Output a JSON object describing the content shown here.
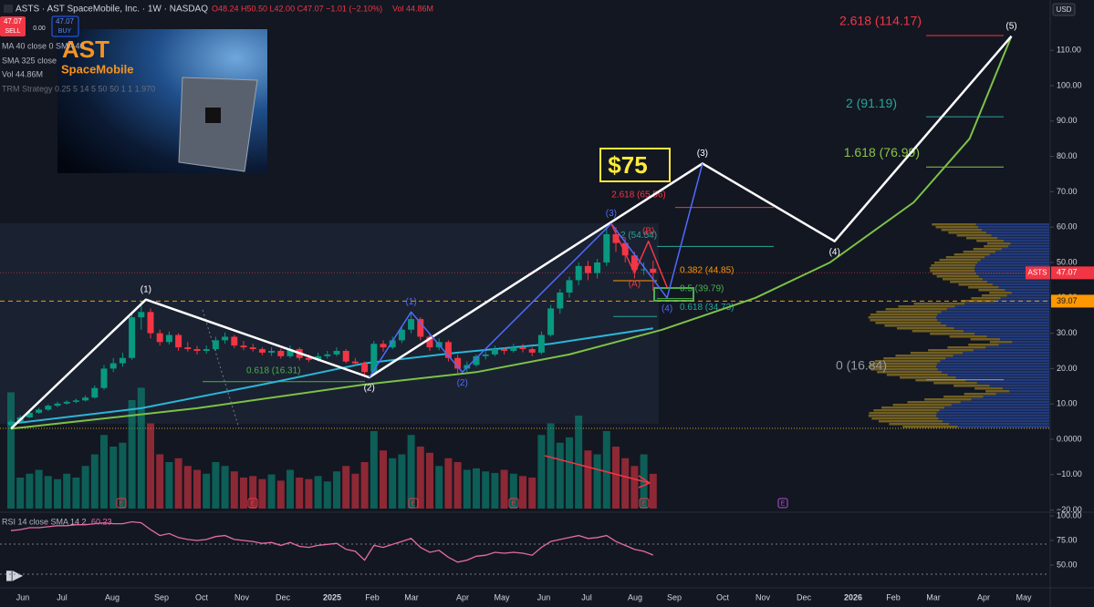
{
  "header": {
    "symbol": "ASTS · AST SpaceMobile, Inc. · 1W · NASDAQ",
    "ohlc": "O48.24 H50.50 L42.00 C47.07 −1.01 (−2.10%)",
    "volume": "Vol 44.86M"
  },
  "trade": {
    "sell_price": "47.07",
    "sell": "SELL",
    "spread": "0.00",
    "buy_price": "47.07",
    "buy": "BUY"
  },
  "indicators": [
    "MA 40 close 0 SMA 40",
    "SMA 325 close",
    "Vol 44.86M",
    "TRM Strategy 0.25 5 14 5 50 50 1 1 1.970"
  ],
  "logo": {
    "top": "AST",
    "bottom": "SpaceMobile"
  },
  "currency": "USD",
  "price_axis": {
    "ticks": [
      {
        "value": 110,
        "label": "110.00"
      },
      {
        "value": 100,
        "label": "100.00"
      },
      {
        "value": 90,
        "label": "90.00"
      },
      {
        "value": 80,
        "label": "80.00"
      },
      {
        "value": 70,
        "label": "70.00"
      },
      {
        "value": 60,
        "label": "60.00"
      },
      {
        "value": 50,
        "label": "50.00"
      },
      {
        "value": 40,
        "label": "40.00"
      },
      {
        "value": 30,
        "label": "30.00"
      },
      {
        "value": 20,
        "label": "20.00"
      },
      {
        "value": 10,
        "label": "10.00"
      },
      {
        "value": 0,
        "label": "0.0000"
      },
      {
        "value": -10,
        "label": "−10.00"
      },
      {
        "value": -20,
        "label": "−20.00"
      }
    ]
  },
  "time_axis": [
    "Jun",
    "Jul",
    "Aug",
    "Sep",
    "Oct",
    "Nov",
    "Dec",
    "2025",
    "Feb",
    "Mar",
    "Apr",
    "May",
    "Jun",
    "Jul",
    "Aug",
    "Sep",
    "Oct",
    "Nov",
    "Dec",
    "2026",
    "Feb",
    "Mar",
    "Apr",
    "May"
  ],
  "up_color": "#089981",
  "down_color": "#f23645",
  "candles": [
    [
      4.0,
      5.6,
      3.6,
      5.0
    ],
    [
      5.0,
      6.8,
      4.8,
      6.2
    ],
    [
      6.2,
      8.0,
      6.0,
      7.5
    ],
    [
      7.5,
      8.9,
      7.2,
      8.4
    ],
    [
      8.4,
      9.9,
      8.0,
      9.5
    ],
    [
      9.5,
      10.6,
      9.1,
      10.1
    ],
    [
      10.1,
      11.0,
      9.8,
      10.6
    ],
    [
      10.6,
      11.5,
      10.2,
      11.0
    ],
    [
      11.0,
      12.4,
      10.7,
      11.8
    ],
    [
      11.8,
      15.2,
      11.5,
      14.5
    ],
    [
      14.5,
      21.0,
      14.0,
      20.0
    ],
    [
      20.0,
      23.0,
      19.0,
      21.5
    ],
    [
      21.5,
      24.5,
      20.5,
      23.0
    ],
    [
      23.0,
      35.5,
      22.5,
      34.5
    ],
    [
      34.5,
      39.1,
      31.0,
      36.0
    ],
    [
      36.0,
      37.0,
      28.5,
      30.0
    ],
    [
      30.0,
      31.0,
      26.5,
      27.5
    ],
    [
      27.5,
      30.5,
      26.8,
      29.5
    ],
    [
      29.5,
      30.0,
      25.0,
      26.0
    ],
    [
      26.0,
      27.5,
      24.8,
      25.5
    ],
    [
      25.5,
      26.4,
      24.0,
      25.0
    ],
    [
      25.0,
      26.5,
      24.2,
      25.5
    ],
    [
      25.5,
      29.0,
      25.0,
      28.0
    ],
    [
      28.0,
      30.2,
      27.0,
      29.0
    ],
    [
      29.0,
      29.5,
      25.8,
      26.5
    ],
    [
      26.5,
      27.8,
      25.2,
      26.0
    ],
    [
      26.0,
      27.0,
      24.8,
      25.5
    ],
    [
      25.5,
      26.0,
      23.8,
      24.5
    ],
    [
      24.5,
      26.0,
      23.6,
      25.0
    ],
    [
      25.0,
      25.6,
      22.8,
      23.5
    ],
    [
      23.5,
      26.5,
      23.0,
      25.5
    ],
    [
      25.5,
      26.0,
      22.3,
      23.0
    ],
    [
      23.0,
      24.0,
      21.8,
      22.5
    ],
    [
      22.5,
      24.5,
      22.0,
      23.5
    ],
    [
      23.5,
      25.0,
      22.8,
      24.0
    ],
    [
      24.0,
      26.0,
      23.5,
      25.0
    ],
    [
      25.0,
      25.5,
      21.5,
      22.0
    ],
    [
      22.0,
      23.0,
      20.8,
      21.5
    ],
    [
      21.5,
      22.0,
      17.5,
      19.0
    ],
    [
      19.0,
      27.8,
      18.6,
      27.0
    ],
    [
      27.0,
      28.0,
      24.8,
      26.0
    ],
    [
      26.0,
      29.0,
      25.5,
      28.0
    ],
    [
      28.0,
      32.0,
      27.2,
      31.0
    ],
    [
      31.0,
      36.0,
      30.0,
      34.0
    ],
    [
      34.0,
      34.5,
      28.0,
      29.0
    ],
    [
      29.0,
      30.0,
      25.0,
      26.0
    ],
    [
      26.0,
      28.5,
      25.2,
      27.5
    ],
    [
      27.5,
      28.0,
      22.0,
      23.0
    ],
    [
      23.0,
      24.0,
      18.5,
      20.0
    ],
    [
      20.0,
      22.0,
      19.0,
      21.0
    ],
    [
      21.0,
      24.0,
      20.5,
      23.5
    ],
    [
      23.5,
      25.0,
      22.6,
      24.0
    ],
    [
      24.0,
      26.5,
      23.5,
      25.5
    ],
    [
      25.5,
      26.0,
      24.0,
      25.0
    ],
    [
      25.0,
      27.0,
      24.5,
      26.0
    ],
    [
      26.0,
      27.0,
      24.6,
      25.5
    ],
    [
      25.5,
      26.0,
      23.5,
      24.5
    ],
    [
      24.5,
      30.5,
      24.0,
      29.5
    ],
    [
      29.5,
      38.0,
      29.0,
      37.0
    ],
    [
      37.0,
      42.5,
      35.5,
      41.5
    ],
    [
      41.5,
      46.0,
      40.0,
      45.0
    ],
    [
      45.0,
      50.0,
      43.5,
      49.0
    ],
    [
      49.0,
      50.5,
      45.0,
      47.0
    ],
    [
      47.0,
      51.0,
      45.5,
      50.0
    ],
    [
      50.0,
      60.1,
      49.0,
      58.0
    ],
    [
      58.0,
      60.0,
      53.0,
      55.5
    ],
    [
      55.5,
      57.0,
      50.0,
      52.0
    ],
    [
      52.0,
      53.0,
      45.5,
      48.0
    ],
    [
      48.0,
      50.0,
      46.5,
      48.08
    ],
    [
      48.24,
      50.5,
      42.0,
      47.07
    ]
  ],
  "volume": [
    150,
    40,
    45,
    50,
    42,
    38,
    45,
    40,
    55,
    70,
    95,
    80,
    85,
    140,
    156,
    110,
    70,
    60,
    65,
    55,
    50,
    45,
    60,
    55,
    48,
    40,
    42,
    38,
    44,
    36,
    50,
    40,
    38,
    42,
    35,
    48,
    55,
    45,
    60,
    100,
    75,
    65,
    70,
    95,
    80,
    72,
    55,
    65,
    60,
    50,
    52,
    48,
    46,
    50,
    45,
    42,
    40,
    95,
    110,
    85,
    92,
    120,
    75,
    70,
    100,
    80,
    65,
    55,
    70,
    44.86
  ],
  "rsi": {
    "label": "RSI 14 close SMA 14 2",
    "value": "60.23",
    "color": "#e36ba6",
    "values": [
      85,
      86,
      88,
      88,
      89,
      90,
      90,
      91,
      91,
      92,
      93,
      92,
      92,
      94,
      93,
      86,
      80,
      82,
      78,
      76,
      75,
      76,
      79,
      80,
      76,
      75,
      74,
      72,
      73,
      70,
      73,
      69,
      68,
      70,
      71,
      72,
      66,
      64,
      55,
      70,
      68,
      71,
      74,
      77,
      68,
      63,
      65,
      58,
      53,
      55,
      59,
      60,
      63,
      62,
      63,
      62,
      60,
      68,
      74,
      76,
      78,
      80,
      77,
      78,
      80,
      74,
      70,
      66,
      64,
      60.23
    ],
    "ticks": [
      {
        "value": 100,
        "label": "100.00"
      },
      {
        "value": 75,
        "label": "75.00"
      },
      {
        "value": 50,
        "label": "50.00"
      }
    ]
  },
  "last_price": {
    "symbol": "ASTS",
    "price": 47.07,
    "label": "47.07"
  },
  "level": {
    "price": 39.07,
    "label": "39.07"
  },
  "target_box": "$75",
  "sma_40": {
    "color": "#2cb5d6",
    "points": [
      [
        0,
        4.4
      ],
      [
        14,
        8.8
      ],
      [
        28,
        16
      ],
      [
        38,
        21.5
      ],
      [
        48,
        24.5
      ],
      [
        58,
        27
      ],
      [
        69,
        31.4
      ]
    ]
  },
  "sma_325": {
    "color": "#7cc247",
    "points": [
      [
        0,
        3
      ],
      [
        20,
        8.8
      ],
      [
        38,
        15.5
      ],
      [
        50,
        19
      ],
      [
        60,
        24
      ],
      [
        70,
        31
      ],
      [
        80,
        40
      ],
      [
        88,
        50
      ],
      [
        97,
        67
      ],
      [
        103,
        85
      ],
      [
        107.5,
        114
      ]
    ]
  },
  "primary_wave": {
    "color": "#ffffff",
    "points": [
      [
        0,
        3
      ],
      [
        14.5,
        39.5
      ],
      [
        38.5,
        17.5
      ],
      [
        74.3,
        78
      ],
      [
        88.5,
        56
      ],
      [
        107.5,
        114
      ]
    ],
    "labels": [
      null,
      "(1)",
      "(2)",
      "(3)",
      "(4)",
      "(5)"
    ]
  },
  "sub_wave": {
    "color": "#4f6bff",
    "points": [
      [
        38.5,
        17.5
      ],
      [
        43,
        36
      ],
      [
        48.5,
        19
      ],
      [
        64.5,
        61
      ],
      [
        70.5,
        40
      ],
      [
        74.3,
        78
      ]
    ],
    "labels": [
      null,
      "(1)",
      "(2)",
      "(3)",
      "(4)",
      null
    ]
  },
  "correction": {
    "color": "#f23645",
    "points": [
      [
        64.5,
        61
      ],
      [
        67,
        47
      ],
      [
        68.5,
        56
      ],
      [
        70.5,
        43
      ]
    ],
    "labels": [
      null,
      "(A)",
      "(B)",
      null
    ]
  },
  "fibs": [
    {
      "price": 114.17,
      "label": "2.618 (114.17)",
      "color": "#f23645"
    },
    {
      "price": 91.19,
      "label": "2 (91.19)",
      "color": "#26a69a"
    },
    {
      "price": 76.99,
      "label": "1.618 (76.99)",
      "color": "#8bc34a"
    },
    {
      "price": 16.84,
      "label": "0 (16.84)",
      "color": "#9598a1"
    },
    {
      "price": 65.56,
      "label": "2.618 (65.56)",
      "color": "#f23645"
    },
    {
      "price": 54.54,
      "label": "2 (54.54)",
      "color": "#26a69a"
    },
    {
      "price": 44.85,
      "label": "0.382 (44.85)",
      "color": "#ff9800"
    },
    {
      "price": 39.79,
      "label": "0.5 (39.79)",
      "color": "#4caf50"
    },
    {
      "price": 34.73,
      "label": "0.618 (34.73)",
      "color": "#26a69a"
    },
    {
      "price": 16.31,
      "label": "0.618 (16.31)",
      "color": "#4caf50"
    }
  ],
  "earnings_label": "E"
}
